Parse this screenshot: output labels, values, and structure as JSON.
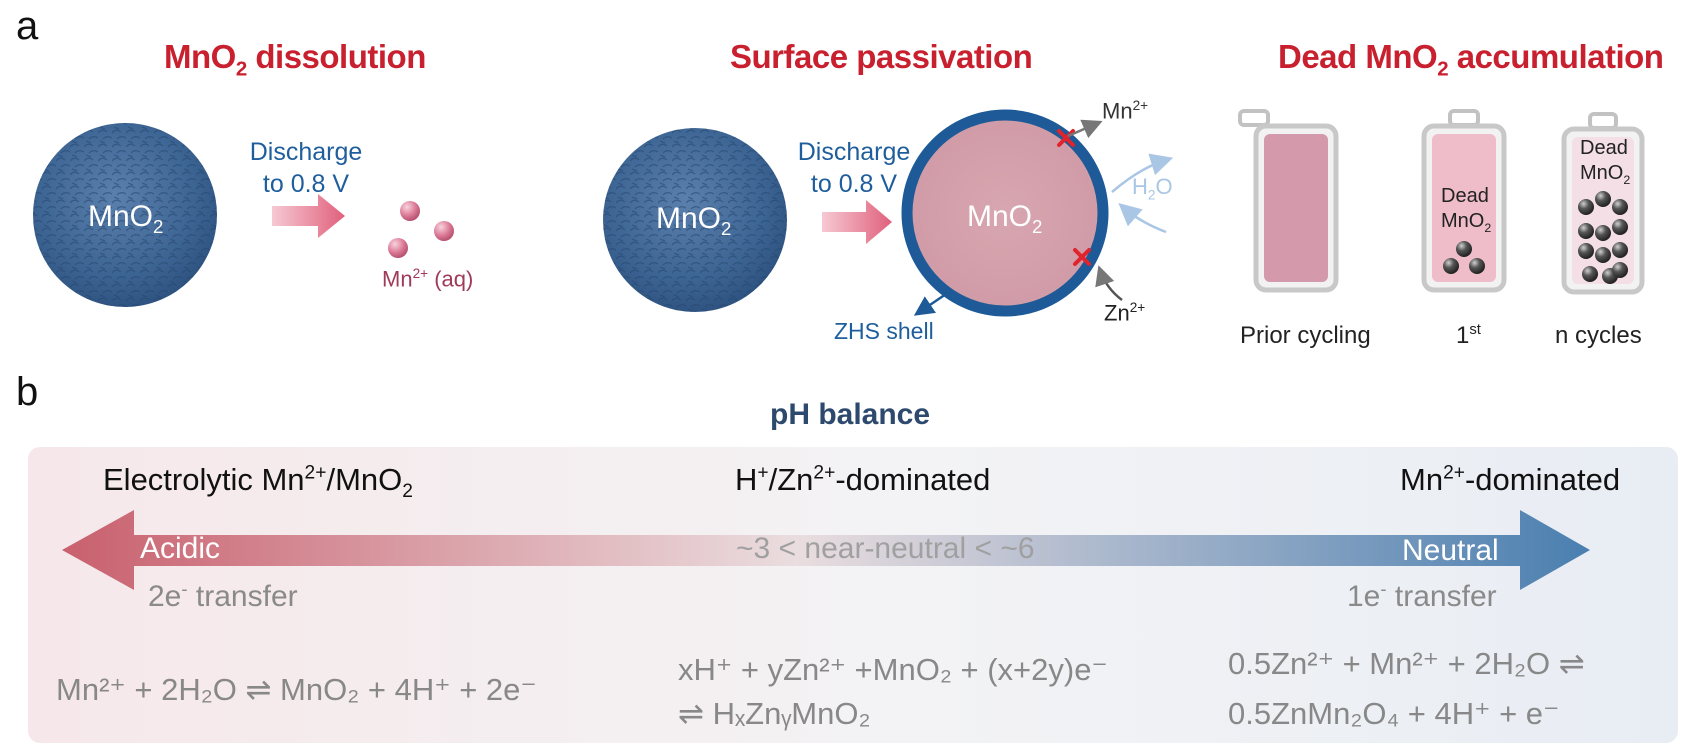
{
  "panel_a": {
    "letter": "a",
    "titles": {
      "dissolution": {
        "pre": "MnO",
        "sub": "2",
        "post": " dissolution"
      },
      "passivation": "Surface passivation",
      "accumulation": {
        "pre": "Dead MnO",
        "sub": "2",
        "post": " accumulation"
      }
    },
    "particle_label": {
      "base": "MnO",
      "sub": "2"
    },
    "discharge": {
      "line1": "Discharge",
      "line2": "to 0.8 V"
    },
    "mn_aq": {
      "base": "Mn",
      "sup": "2+",
      "post": " (aq)"
    },
    "shell_label": "ZHS shell",
    "mn2plus": {
      "base": "Mn",
      "sup": "2+"
    },
    "zn2plus": {
      "base": "Zn",
      "sup": "2+"
    },
    "h2o": {
      "base": "H",
      "sub": "2",
      "post": "O"
    },
    "dead": {
      "line1": "Dead",
      "line2": "MnO",
      "sub": "2"
    },
    "battery_captions": {
      "prior": "Prior cycling",
      "first": {
        "base": "1",
        "sup": "st"
      },
      "n": "n cycles"
    }
  },
  "panel_b": {
    "letter": "b",
    "title": "pH balance",
    "left_header": {
      "t1": "Electrolytic Mn",
      "sup": "2+",
      "t2": "/MnO",
      "sub": "2"
    },
    "mid_header": {
      "t1": "H",
      "sup1": "+",
      "t2": "/Zn",
      "sup2": "2+",
      "t3": "-dominated"
    },
    "right_header": {
      "t1": "Mn",
      "sup": "2+",
      "t2": "-dominated"
    },
    "acidic": "Acidic",
    "neutral": "Neutral",
    "ph_range": "~3 < near-neutral < ~6",
    "left_transfer": {
      "t1": "2e",
      "sup": "-",
      "t2": " transfer"
    },
    "right_transfer": {
      "t1": "1e",
      "sup": "-",
      "t2": " transfer"
    },
    "eq_left": "Mn²⁺ + 2H₂O ⇌ MnO₂ + 4H⁺ +  2e⁻",
    "eq_mid_1": "xH⁺ + yZn²⁺ +MnO₂ + (x+2y)e⁻",
    "eq_mid_2": "⇌ HₓZnᵧMnO₂",
    "eq_right_1": "0.5Zn²⁺ + Mn²⁺ + 2H₂O ⇌",
    "eq_right_2": "0.5ZnMn₂O₄ + 4H⁺ + e⁻"
  },
  "colors": {
    "title_red": "#c8202e",
    "label_blue": "#1f5e9c",
    "arrow_pink": "#e06a84",
    "shell_blue": "#1d5a97",
    "arrow_acidic": "#c9606e",
    "arrow_neutral": "#4a7fb0"
  }
}
